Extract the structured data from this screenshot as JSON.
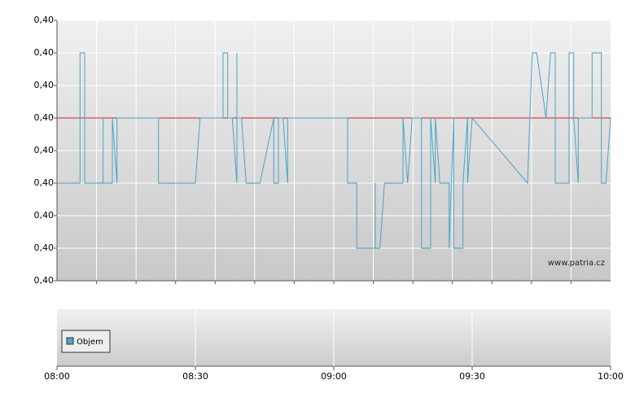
{
  "chart_data": {
    "type": "line",
    "watermark": "www.patria.cz",
    "xlim": [
      "08:00",
      "10:00"
    ],
    "xticks": [
      "08:00",
      "08:30",
      "09:00",
      "09:30",
      "10:00"
    ],
    "ylim": [
      0.398,
      0.402
    ],
    "yticks": [
      {
        "value": 0.398,
        "label": "0,40"
      },
      {
        "value": 0.3985,
        "label": "0,40"
      },
      {
        "value": 0.399,
        "label": "0,40"
      },
      {
        "value": 0.3995,
        "label": "0,40"
      },
      {
        "value": 0.4,
        "label": "0,40"
      },
      {
        "value": 0.4005,
        "label": "0,40"
      },
      {
        "value": 0.401,
        "label": "0,40"
      },
      {
        "value": 0.4015,
        "label": "0,40"
      },
      {
        "value": 0.402,
        "label": "0,40"
      }
    ],
    "grid": true,
    "reference_line": {
      "value": 0.4005,
      "color": "#cc2222"
    },
    "x": [
      "08:00",
      "08:05",
      "08:05",
      "08:06",
      "08:06",
      "08:10",
      "08:10",
      "08:10",
      "08:12",
      "08:12",
      "08:13",
      "08:13",
      "08:22",
      "08:22",
      "08:30",
      "08:31",
      "08:36",
      "08:36",
      "08:37",
      "08:37",
      "08:38",
      "08:39",
      "08:39",
      "08:39",
      "08:40",
      "08:41",
      "08:44",
      "08:47",
      "08:47",
      "08:48",
      "08:48",
      "08:49",
      "08:50",
      "08:50",
      "09:03",
      "09:03",
      "09:05",
      "09:05",
      "09:09",
      "09:09",
      "09:09",
      "09:10",
      "09:11",
      "09:15",
      "09:15",
      "09:16",
      "09:17",
      "09:19",
      "09:19",
      "09:21",
      "09:21",
      "09:22",
      "09:22",
      "09:23",
      "09:25",
      "09:25",
      "09:26",
      "09:26",
      "09:28",
      "09:28",
      "09:29",
      "09:29",
      "09:30",
      "09:42",
      "09:43",
      "09:44",
      "09:46",
      "09:47",
      "09:48",
      "09:48",
      "09:51",
      "09:51",
      "09:52",
      "09:52",
      "09:53",
      "09:53",
      "09:56",
      "09:56",
      "09:58",
      "09:58",
      "09:59",
      "10:00"
    ],
    "series": [
      {
        "name": "Objem",
        "color": "#4aa3c8",
        "values": [
          0.3995,
          0.3995,
          0.4015,
          0.4015,
          0.3995,
          0.3995,
          0.4005,
          0.3995,
          0.3995,
          0.4005,
          0.3995,
          0.4005,
          0.4005,
          0.3995,
          0.3995,
          0.4005,
          0.4005,
          0.4015,
          0.4015,
          0.4005,
          0.4005,
          0.3995,
          0.4015,
          0.4005,
          0.4005,
          0.3995,
          0.3995,
          0.4005,
          0.3995,
          0.3995,
          0.4005,
          0.4005,
          0.3995,
          0.4005,
          0.4005,
          0.3995,
          0.3995,
          0.3985,
          0.3985,
          0.3995,
          0.3985,
          0.3985,
          0.3995,
          0.3995,
          0.4005,
          0.3995,
          0.4005,
          0.4005,
          0.3985,
          0.3985,
          0.4005,
          0.3995,
          0.4005,
          0.3995,
          0.3995,
          0.3985,
          0.4005,
          0.3985,
          0.3985,
          0.3995,
          0.4005,
          0.3995,
          0.4005,
          0.3995,
          0.4015,
          0.4015,
          0.4005,
          0.4015,
          0.4015,
          0.3995,
          0.3995,
          0.4015,
          0.4015,
          0.4005,
          0.3995,
          0.4005,
          0.4005,
          0.4015,
          0.4015,
          0.3995,
          0.3995,
          0.4005
        ]
      }
    ]
  }
}
